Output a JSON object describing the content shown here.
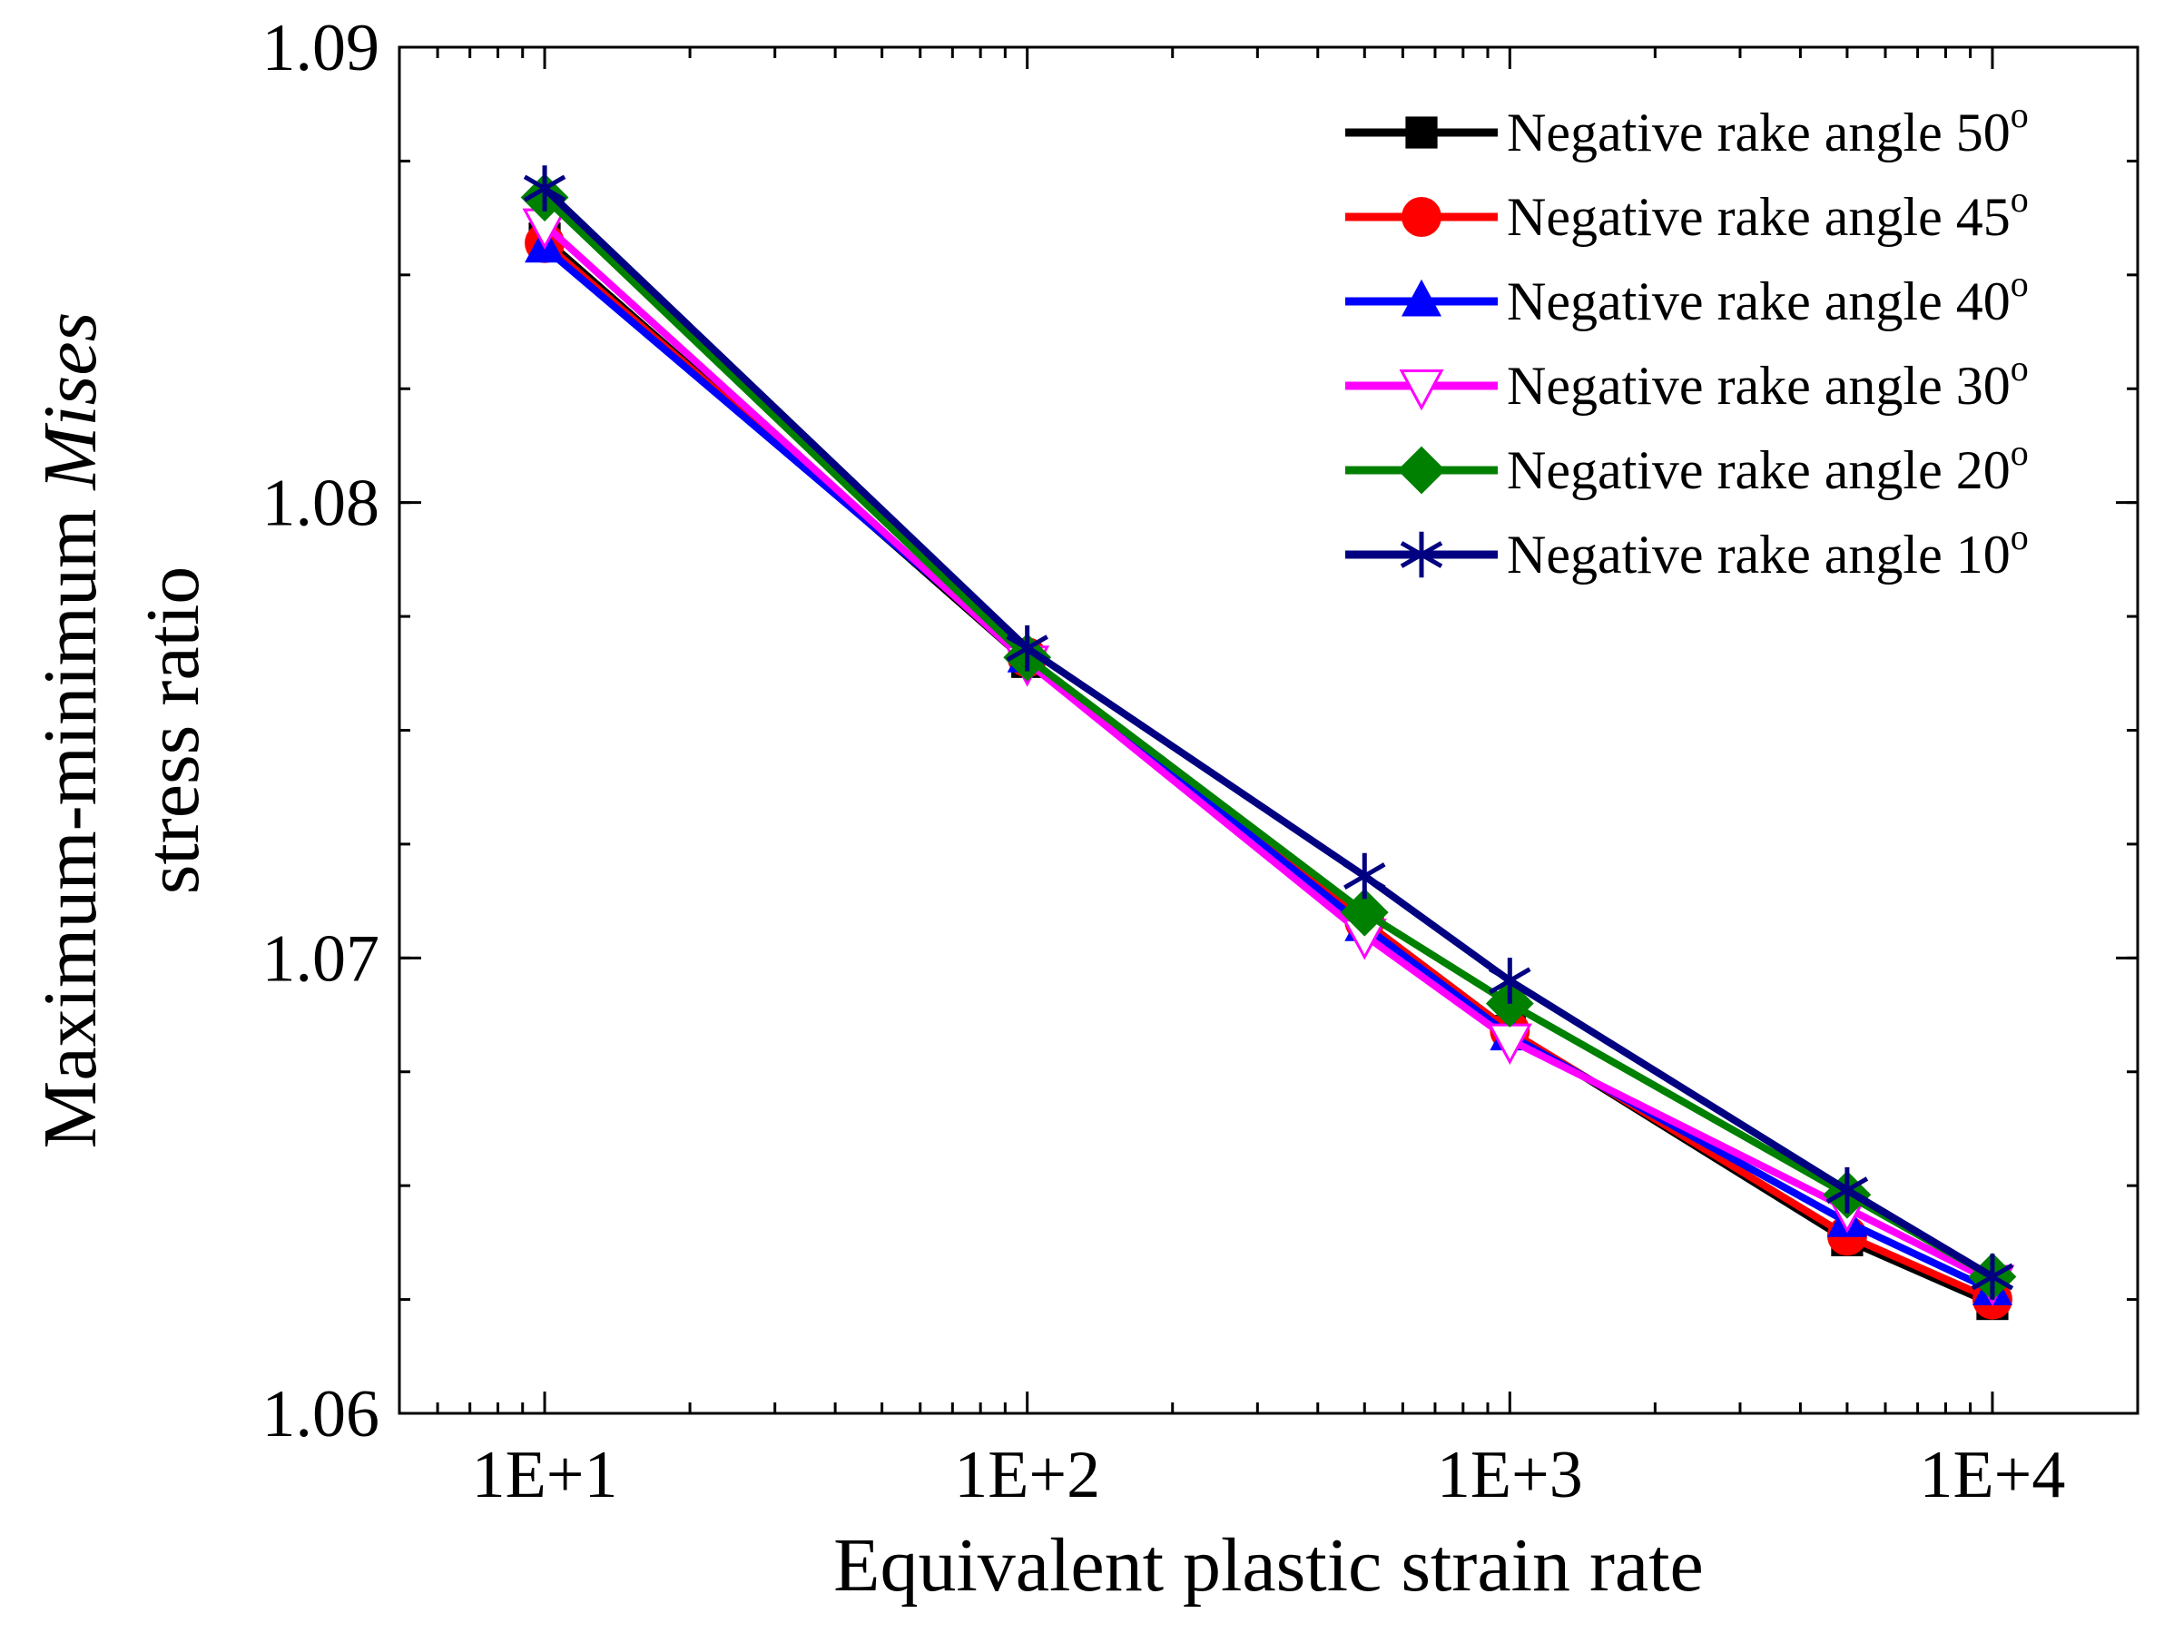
{
  "chart_data": {
    "type": "line",
    "xlabel": "Equivalent plastic strain rate",
    "ylabel_lines": [
      "Maximum-minimum ",
      "Mises",
      "stress ratio"
    ],
    "x_scale": "log",
    "xlim": [
      5,
      20000
    ],
    "ylim": [
      1.06,
      1.09
    ],
    "x_ticks": [
      10,
      100,
      1000,
      10000
    ],
    "x_tick_labels": [
      "1E+1",
      "1E+2",
      "1E+3",
      "1E+4"
    ],
    "y_ticks": [
      1.06,
      1.07,
      1.08,
      1.09
    ],
    "y_tick_labels": [
      "1.06",
      "1.07",
      "1.08",
      "1.09"
    ],
    "x": [
      10,
      100,
      500,
      1000,
      5000,
      10000
    ],
    "grid": false,
    "legend_position": "top-right",
    "series": [
      {
        "name": "Negative rake angle 50",
        "sup": "o",
        "color": "#000000",
        "marker": "square",
        "values": [
          1.0858,
          1.0765,
          1.0708,
          1.0684,
          1.0638,
          1.0624
        ]
      },
      {
        "name": "Negative rake angle 45",
        "sup": "o",
        "color": "#ff0000",
        "marker": "circle",
        "values": [
          1.0857,
          1.0766,
          1.0708,
          1.0684,
          1.0639,
          1.0625
        ]
      },
      {
        "name": "Negative rake angle 40",
        "sup": "o",
        "color": "#0000ff",
        "marker": "triangle-up",
        "values": [
          1.0856,
          1.0766,
          1.0707,
          1.0683,
          1.0642,
          1.0627
        ]
      },
      {
        "name": "Negative rake angle 30",
        "sup": "o",
        "color": "#ff00ff",
        "marker": "triangle-down-open",
        "values": [
          1.0861,
          1.0765,
          1.0705,
          1.0682,
          1.0645,
          1.0629
        ]
      },
      {
        "name": "Negative rake angle 20",
        "sup": "o",
        "color": "#008000",
        "marker": "diamond",
        "values": [
          1.0867,
          1.0766,
          1.071,
          1.069,
          1.0648,
          1.063
        ]
      },
      {
        "name": "Negative rake angle 10",
        "sup": "o",
        "color": "#000080",
        "marker": "star",
        "values": [
          1.0869,
          1.0768,
          1.0718,
          1.0695,
          1.0649,
          1.063
        ]
      }
    ]
  }
}
